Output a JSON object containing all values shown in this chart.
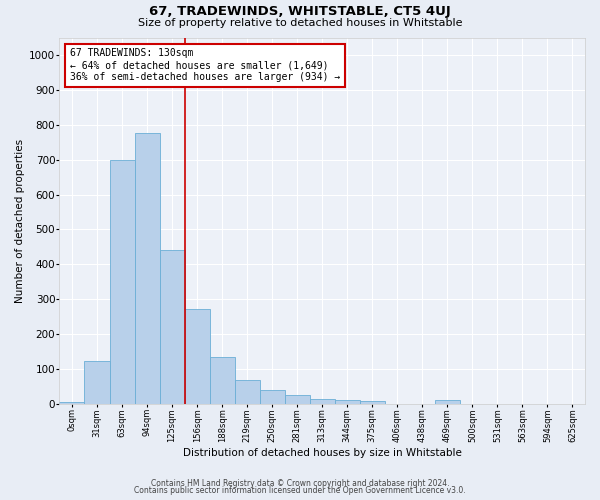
{
  "title": "67, TRADEWINDS, WHITSTABLE, CT5 4UJ",
  "subtitle": "Size of property relative to detached houses in Whitstable",
  "xlabel": "Distribution of detached houses by size in Whitstable",
  "ylabel": "Number of detached properties",
  "bar_labels": [
    "0sqm",
    "31sqm",
    "63sqm",
    "94sqm",
    "125sqm",
    "156sqm",
    "188sqm",
    "219sqm",
    "250sqm",
    "281sqm",
    "313sqm",
    "344sqm",
    "375sqm",
    "406sqm",
    "438sqm",
    "469sqm",
    "500sqm",
    "531sqm",
    "563sqm",
    "594sqm",
    "625sqm"
  ],
  "bar_values": [
    5,
    122,
    700,
    775,
    440,
    272,
    133,
    68,
    40,
    26,
    13,
    11,
    8,
    0,
    0,
    10,
    0,
    0,
    0,
    0,
    0
  ],
  "bar_color": "#b8d0ea",
  "bar_edge_color": "#6baed6",
  "vline_x": 4.5,
  "vline_color": "#cc0000",
  "annotation_text_line1": "67 TRADEWINDS: 130sqm",
  "annotation_text_line2": "← 64% of detached houses are smaller (1,649)",
  "annotation_text_line3": "36% of semi-detached houses are larger (934) →",
  "ylim": [
    0,
    1050
  ],
  "yticks": [
    0,
    100,
    200,
    300,
    400,
    500,
    600,
    700,
    800,
    900,
    1000
  ],
  "bg_color": "#e8edf5",
  "plot_bg_color": "#edf1f8",
  "footer_line1": "Contains HM Land Registry data © Crown copyright and database right 2024.",
  "footer_line2": "Contains public sector information licensed under the Open Government Licence v3.0."
}
